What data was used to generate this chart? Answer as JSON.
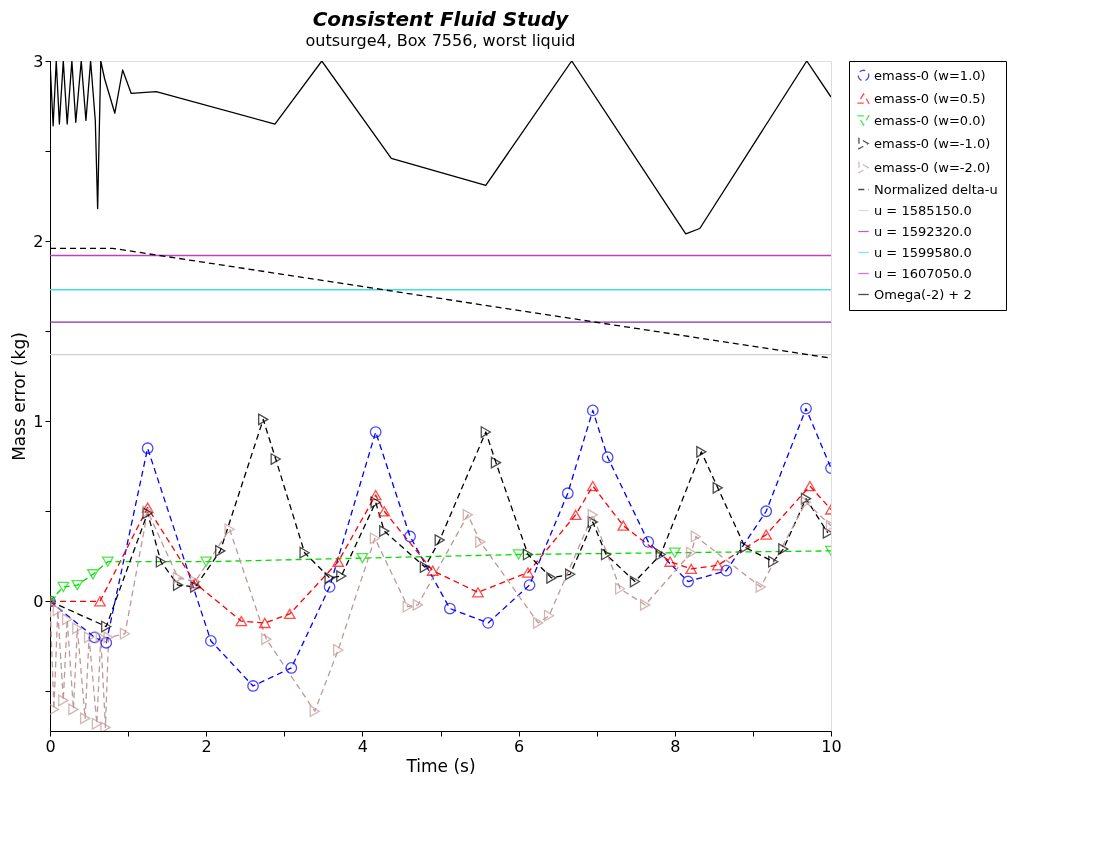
{
  "chart_data": {
    "type": "line",
    "title": "Consistent Fluid Study",
    "subtitle": "outsurge4, Box 7556, worst liquid",
    "xlabel": "Time (s)",
    "ylabel": "Mass error (kg)",
    "xlim": [
      0,
      10
    ],
    "ylim": [
      -0.72,
      3
    ],
    "xticks": [
      0,
      {
        "value": 1,
        "label": null
      },
      2,
      {
        "value": 3,
        "label": null
      },
      4,
      {
        "value": 5,
        "label": null
      },
      6,
      {
        "value": 7,
        "label": null
      },
      8,
      {
        "value": 9,
        "label": null
      },
      10
    ],
    "yticks": [
      {
        "value": -0.5,
        "label": null
      },
      0,
      {
        "value": 0.5,
        "label": null
      },
      1,
      {
        "value": 1.5,
        "label": null
      },
      2,
      {
        "value": 2.5,
        "label": null
      },
      3
    ],
    "grid": false,
    "legend": "right",
    "series": [
      {
        "name": "emass-0 (w=1.0)",
        "color": "#0000ff",
        "marker": "circle",
        "line_style": "dashed",
        "x": [
          0,
          0.57,
          0.72,
          1.25,
          2.06,
          2.6,
          3.09,
          3.58,
          4.17,
          4.61,
          5.12,
          5.61,
          6.14,
          6.63,
          6.95,
          7.14,
          7.66,
          8.17,
          8.66,
          9.17,
          9.68,
          10
        ],
        "values": [
          0,
          -0.2,
          -0.23,
          0.85,
          -0.22,
          -0.47,
          -0.37,
          0.08,
          0.94,
          0.36,
          -0.04,
          -0.12,
          0.09,
          0.6,
          1.06,
          0.8,
          0.33,
          0.11,
          0.17,
          0.5,
          1.07,
          0.74
        ]
      },
      {
        "name": "emass-0 (w=0.5)",
        "color": "#ff0000",
        "marker": "triangle",
        "line_style": "dashed",
        "x": [
          0,
          0.64,
          1.25,
          1.86,
          2.45,
          2.75,
          3.07,
          3.69,
          4.17,
          4.28,
          4.9,
          5.48,
          6.12,
          6.73,
          6.95,
          7.34,
          7.94,
          8.21,
          8.55,
          9.17,
          9.73,
          10
        ],
        "values": [
          0,
          0.0,
          0.52,
          0.1,
          -0.11,
          -0.12,
          -0.07,
          0.22,
          0.59,
          0.5,
          0.17,
          0.05,
          0.16,
          0.48,
          0.64,
          0.42,
          0.22,
          0.18,
          0.2,
          0.37,
          0.64,
          0.51
        ]
      },
      {
        "name": "emass-0 (w=0.0)",
        "color": "#00dd00",
        "marker": "triangle-down",
        "line_style": "dashed",
        "x": [
          0,
          0.17,
          0.35,
          0.55,
          0.74,
          2,
          4,
          6,
          8,
          10
        ],
        "values": [
          0,
          0.08,
          0.09,
          0.15,
          0.22,
          0.22,
          0.24,
          0.26,
          0.27,
          0.28
        ]
      },
      {
        "name": "emass-0 (w=-1.0)",
        "color": "#000000",
        "marker": "triangle-right",
        "line_style": "dashed",
        "x": [
          0,
          0.72,
          1.25,
          1.42,
          1.64,
          1.86,
          2.18,
          2.73,
          2.89,
          3.26,
          3.58,
          3.73,
          4.17,
          4.28,
          4.8,
          4.99,
          5.58,
          5.71,
          6.12,
          6.42,
          6.66,
          6.95,
          7.12,
          7.49,
          7.82,
          8.34,
          8.55,
          8.9,
          9.26,
          9.39,
          9.68,
          9.96
        ],
        "values": [
          0,
          -0.14,
          0.49,
          0.22,
          0.09,
          0.08,
          0.28,
          1.01,
          0.79,
          0.27,
          0.13,
          0.14,
          0.55,
          0.39,
          0.19,
          0.34,
          0.94,
          0.77,
          0.26,
          0.13,
          0.15,
          0.44,
          0.26,
          0.11,
          0.26,
          0.83,
          0.63,
          0.3,
          0.22,
          0.29,
          0.57,
          0.38
        ]
      },
      {
        "name": "emass-0 (w=-2.0)",
        "color": "#c09898",
        "marker": "triangle-right",
        "line_style": "dashed",
        "x": [
          0,
          0.05,
          0.1,
          0.17,
          0.22,
          0.3,
          0.35,
          0.45,
          0.5,
          0.6,
          0.65,
          0.71,
          0.75,
          0.96,
          1.25,
          1.64,
          1.86,
          2.3,
          2.77,
          3.39,
          3.69,
          4.16,
          4.58,
          4.71,
          5.35,
          5.51,
          6.25,
          6.39,
          6.95,
          7.3,
          7.62,
          8.21,
          8.27,
          9.1,
          9.68,
          10
        ],
        "values": [
          0,
          -0.6,
          -0.05,
          -0.55,
          -0.1,
          -0.6,
          -0.15,
          -0.65,
          -0.2,
          -0.68,
          -0.2,
          -0.7,
          -0.2,
          -0.18,
          0.5,
          0.13,
          0.11,
          0.4,
          -0.21,
          -0.61,
          -0.27,
          0.35,
          -0.03,
          -0.02,
          0.48,
          0.33,
          -0.12,
          -0.08,
          0.48,
          0.07,
          -0.02,
          0.27,
          0.36,
          0.08,
          0.55,
          0.42
        ]
      },
      {
        "name": "Normalized delta-u",
        "color": "#000000",
        "marker": "none",
        "line_style": "dashed",
        "x": [
          0,
          0.8,
          10
        ],
        "values": [
          1.96,
          1.96,
          1.35
        ]
      },
      {
        "name": "u = 1585150.0",
        "color": "#d0d0d0",
        "marker": "none",
        "line_style": "solid",
        "x": [
          0,
          10
        ],
        "values": [
          1.37,
          1.37
        ]
      },
      {
        "name": "u = 1592320.0",
        "color": "#8030b0",
        "marker": "none",
        "line_style": "solid",
        "x": [
          0,
          10
        ],
        "values": [
          1.55,
          1.55
        ]
      },
      {
        "name": "u = 1599580.0",
        "color": "#40e0e0",
        "marker": "none",
        "line_style": "solid",
        "x": [
          0,
          10
        ],
        "values": [
          1.73,
          1.73
        ]
      },
      {
        "name": "u = 1607050.0",
        "color": "#c040c0",
        "marker": "none",
        "line_style": "solid",
        "x": [
          0,
          10
        ],
        "values": [
          1.92,
          1.92
        ]
      },
      {
        "name": "Omega(-2) + 2",
        "color": "#000000",
        "marker": "none",
        "line_style": "solid",
        "x": [
          0,
          0.04,
          0.08,
          0.12,
          0.17,
          0.22,
          0.28,
          0.33,
          0.4,
          0.46,
          0.52,
          0.58,
          0.61,
          0.65,
          0.7,
          0.83,
          0.93,
          1.04,
          1.36,
          2.88,
          3.48,
          4.37,
          5.58,
          6.68,
          8.14,
          8.32,
          9.69,
          10
        ],
        "values": [
          3.0,
          2.64,
          3.0,
          2.65,
          3.0,
          2.65,
          3.0,
          2.66,
          3.0,
          2.67,
          3.0,
          2.67,
          2.18,
          3.0,
          2.9,
          2.71,
          2.95,
          2.82,
          2.83,
          2.65,
          3.0,
          2.46,
          2.31,
          3.0,
          2.04,
          2.07,
          3.0,
          2.8
        ]
      }
    ]
  }
}
